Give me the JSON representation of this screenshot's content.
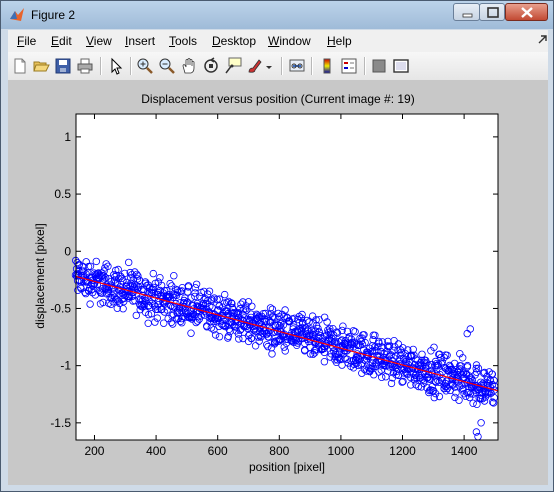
{
  "window": {
    "title": "Figure 2"
  },
  "menu": [
    {
      "label": "File",
      "u": "F",
      "rest": "ile"
    },
    {
      "label": "Edit",
      "u": "E",
      "rest": "dit"
    },
    {
      "label": "View",
      "u": "V",
      "rest": "iew"
    },
    {
      "label": "Insert",
      "u": "I",
      "rest": "nsert"
    },
    {
      "label": "Tools",
      "u": "T",
      "rest": "ools"
    },
    {
      "label": "Desktop",
      "u": "D",
      "rest": "esktop"
    },
    {
      "label": "Window",
      "u": "W",
      "rest": "indow"
    },
    {
      "label": "Help",
      "u": "H",
      "rest": "elp"
    }
  ],
  "toolbar": [
    "new-figure-icon",
    "open-file-icon",
    "save-icon",
    "print-icon",
    "select-arrow-icon",
    "zoom-in-icon",
    "zoom-out-icon",
    "pan-hand-icon",
    "rotate-3d-icon",
    "data-cursor-icon",
    "brush-icon",
    "link-plot-icon",
    "colorbar-icon",
    "legend-icon",
    "hide-plot-tools-icon",
    "show-plot-tools-icon"
  ],
  "chart_data": {
    "type": "scatter",
    "title": "Displacement versus position (Current image #: 19)",
    "xlabel": "position [pixel]",
    "ylabel": "displacement [pixel]",
    "xlim": [
      140,
      1510
    ],
    "ylim": [
      -1.65,
      1.2
    ],
    "xticks": [
      200,
      400,
      600,
      800,
      1000,
      1200,
      1400
    ],
    "yticks": [
      1,
      0.5,
      0,
      -0.5,
      -1,
      -1.5
    ],
    "grid": false,
    "marker_color": "#0000ff",
    "fit_color": "#ff0000",
    "fit_line": {
      "x": [
        140,
        1510
      ],
      "y": [
        -0.22,
        -1.22
      ]
    },
    "scatter_band": {
      "x_range": [
        140,
        1500
      ],
      "center": {
        "x": [
          140,
          1500
        ],
        "y": [
          -0.22,
          -1.2
        ]
      },
      "spread": 0.27,
      "outliers": [
        [
          1410,
          -0.72
        ],
        [
          1420,
          -0.68
        ],
        [
          1440,
          -1.58
        ],
        [
          1445,
          -1.62
        ],
        [
          1455,
          -1.5
        ]
      ]
    }
  }
}
